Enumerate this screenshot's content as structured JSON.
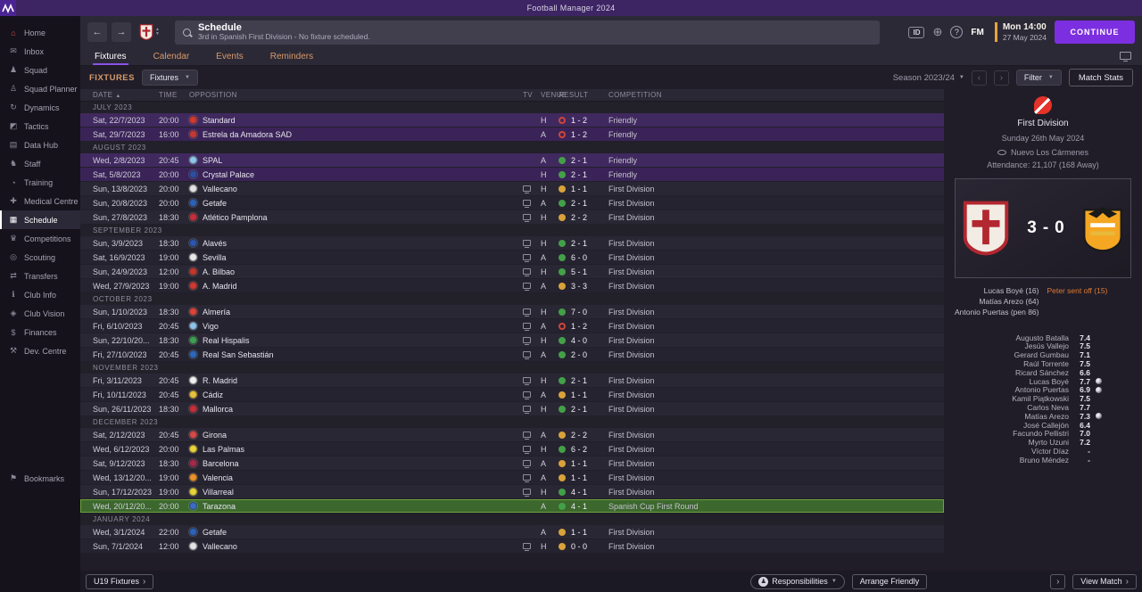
{
  "titlebar": {
    "title": "Football Manager 2024"
  },
  "sidebar": {
    "items": [
      {
        "label": "Home",
        "icon": "home-icon",
        "accent": true
      },
      {
        "label": "Inbox",
        "icon": "inbox-icon"
      },
      {
        "label": "Squad",
        "icon": "squad-icon"
      },
      {
        "label": "Squad Planner",
        "icon": "squad-planner-icon"
      },
      {
        "label": "Dynamics",
        "icon": "dynamics-icon"
      },
      {
        "label": "Tactics",
        "icon": "tactics-icon"
      },
      {
        "label": "Data Hub",
        "icon": "data-hub-icon"
      },
      {
        "label": "Staff",
        "icon": "staff-icon"
      },
      {
        "label": "Training",
        "icon": "training-icon"
      },
      {
        "label": "Medical Centre",
        "icon": "medical-icon"
      },
      {
        "label": "Schedule",
        "icon": "schedule-icon",
        "selected": true
      },
      {
        "label": "Competitions",
        "icon": "competitions-icon"
      },
      {
        "label": "Scouting",
        "icon": "scouting-icon"
      },
      {
        "label": "Transfers",
        "icon": "transfers-icon"
      },
      {
        "label": "Club Info",
        "icon": "club-info-icon"
      },
      {
        "label": "Club Vision",
        "icon": "club-vision-icon"
      },
      {
        "label": "Finances",
        "icon": "finances-icon"
      },
      {
        "label": "Dev. Centre",
        "icon": "dev-centre-icon"
      }
    ],
    "bookmarks_label": "Bookmarks"
  },
  "header": {
    "title": "Schedule",
    "subtitle": "3rd in Spanish First Division - No fixture scheduled.",
    "id_label": "ID",
    "help_label": "?",
    "fm_label": "FM",
    "clock_time": "Mon 14:00",
    "clock_date": "27 May 2024",
    "continue_label": "CONTINUE"
  },
  "tabs": [
    {
      "label": "Fixtures",
      "active": true
    },
    {
      "label": "Calendar",
      "active": false
    },
    {
      "label": "Events",
      "active": false
    },
    {
      "label": "Reminders",
      "active": false
    }
  ],
  "toolbar": {
    "section_label": "FIXTURES",
    "view_label": "Fixtures",
    "season_label": "Season 2023/24",
    "filter_label": "Filter",
    "match_stats_label": "Match Stats"
  },
  "fixtures": {
    "columns": {
      "date": "DATE",
      "time": "TIME",
      "opposition": "OPPOSITION",
      "tv": "TV",
      "venue": "VENUE",
      "result": "RESULT",
      "competition": "COMPETITION"
    },
    "groups": [
      {
        "month": "JULY 2023",
        "rows": [
          {
            "date": "Sat, 22/7/2023",
            "time": "20:00",
            "team": "Standard",
            "badge": "#cf3b31",
            "tv": false,
            "venue": "H",
            "outcome": "loss",
            "result": "1 - 2",
            "comp": "Friendly",
            "hl": "friendly"
          },
          {
            "date": "Sat, 29/7/2023",
            "time": "16:00",
            "team": "Estrela da Amadora SAD",
            "badge": "#c13a3a",
            "tv": false,
            "venue": "A",
            "outcome": "loss",
            "result": "1 - 2",
            "comp": "Friendly",
            "hl": "friendly"
          }
        ]
      },
      {
        "month": "AUGUST 2023",
        "rows": [
          {
            "date": "Wed, 2/8/2023",
            "time": "20:45",
            "team": "SPAL",
            "badge": "#8fc6e8",
            "tv": false,
            "venue": "A",
            "outcome": "win",
            "result": "2 - 1",
            "comp": "Friendly",
            "hl": "friendly"
          },
          {
            "date": "Sat, 5/8/2023",
            "time": "20:00",
            "team": "Crystal Palace",
            "badge": "#2f4ea0",
            "tv": false,
            "venue": "H",
            "outcome": "win",
            "result": "2 - 1",
            "comp": "Friendly",
            "hl": "friendly"
          },
          {
            "date": "Sun, 13/8/2023",
            "time": "20:00",
            "team": "Vallecano",
            "badge": "#e3e3e3",
            "tv": true,
            "venue": "H",
            "outcome": "draw",
            "result": "1 - 1",
            "comp": "First Division"
          },
          {
            "date": "Sun, 20/8/2023",
            "time": "20:00",
            "team": "Getafe",
            "badge": "#2d62b5",
            "tv": true,
            "venue": "A",
            "outcome": "win",
            "result": "2 - 1",
            "comp": "First Division"
          },
          {
            "date": "Sun, 27/8/2023",
            "time": "18:30",
            "team": "Atlético Pamplona",
            "badge": "#c2303d",
            "tv": true,
            "venue": "H",
            "outcome": "draw",
            "result": "2 - 2",
            "comp": "First Division"
          }
        ]
      },
      {
        "month": "SEPTEMBER 2023",
        "rows": [
          {
            "date": "Sun, 3/9/2023",
            "time": "18:30",
            "team": "Alavés",
            "badge": "#2d55ab",
            "tv": true,
            "venue": "H",
            "outcome": "win",
            "result": "2 - 1",
            "comp": "First Division"
          },
          {
            "date": "Sat, 16/9/2023",
            "time": "19:00",
            "team": "Sevilla",
            "badge": "#e8e8e8",
            "tv": true,
            "venue": "A",
            "outcome": "win",
            "result": "6 - 0",
            "comp": "First Division"
          },
          {
            "date": "Sun, 24/9/2023",
            "time": "12:00",
            "team": "A. Bilbao",
            "badge": "#c0392e",
            "tv": true,
            "venue": "H",
            "outcome": "win",
            "result": "5 - 1",
            "comp": "First Division"
          },
          {
            "date": "Wed, 27/9/2023",
            "time": "19:00",
            "team": "A. Madrid",
            "badge": "#cb3a33",
            "tv": true,
            "venue": "A",
            "outcome": "draw",
            "result": "3 - 3",
            "comp": "First Division"
          }
        ]
      },
      {
        "month": "OCTOBER 2023",
        "rows": [
          {
            "date": "Sun, 1/10/2023",
            "time": "18:30",
            "team": "Almería",
            "badge": "#d8453c",
            "tv": true,
            "venue": "H",
            "outcome": "win",
            "result": "7 - 0",
            "comp": "First Division"
          },
          {
            "date": "Fri, 6/10/2023",
            "time": "20:45",
            "team": "Vigo",
            "badge": "#8fc0e8",
            "tv": true,
            "venue": "A",
            "outcome": "loss",
            "result": "1 - 2",
            "comp": "First Division"
          },
          {
            "date": "Sun, 22/10/20...",
            "time": "18:30",
            "team": "Real Hispalis",
            "badge": "#3f9e53",
            "tv": true,
            "venue": "H",
            "outcome": "win",
            "result": "4 - 0",
            "comp": "First Division"
          },
          {
            "date": "Fri, 27/10/2023",
            "time": "20:45",
            "team": "Real San Sebastián",
            "badge": "#2d68b8",
            "tv": true,
            "venue": "A",
            "outcome": "win",
            "result": "2 - 0",
            "comp": "First Division"
          }
        ]
      },
      {
        "month": "NOVEMBER 2023",
        "rows": [
          {
            "date": "Fri, 3/11/2023",
            "time": "20:45",
            "team": "R. Madrid",
            "badge": "#efefef",
            "tv": true,
            "venue": "H",
            "outcome": "win",
            "result": "2 - 1",
            "comp": "First Division"
          },
          {
            "date": "Fri, 10/11/2023",
            "time": "20:45",
            "team": "Cádiz",
            "badge": "#e6c23c",
            "tv": true,
            "venue": "A",
            "outcome": "draw",
            "result": "1 - 1",
            "comp": "First Division"
          },
          {
            "date": "Sun, 26/11/2023",
            "time": "18:30",
            "team": "Mallorca",
            "badge": "#c33038",
            "tv": true,
            "venue": "H",
            "outcome": "win",
            "result": "2 - 1",
            "comp": "First Division"
          }
        ]
      },
      {
        "month": "DECEMBER 2023",
        "rows": [
          {
            "date": "Sat, 2/12/2023",
            "time": "20:45",
            "team": "Girona",
            "badge": "#d24a4a",
            "tv": true,
            "venue": "A",
            "outcome": "draw",
            "result": "2 - 2",
            "comp": "First Division"
          },
          {
            "date": "Wed, 6/12/2023",
            "time": "20:00",
            "team": "Las Palmas",
            "badge": "#e8d23c",
            "tv": true,
            "venue": "H",
            "outcome": "win",
            "result": "6 - 2",
            "comp": "First Division"
          },
          {
            "date": "Sat, 9/12/2023",
            "time": "18:30",
            "team": "Barcelona",
            "badge": "#a32a4c",
            "tv": true,
            "venue": "A",
            "outcome": "draw",
            "result": "1 - 1",
            "comp": "First Division"
          },
          {
            "date": "Wed, 13/12/20...",
            "time": "19:00",
            "team": "Valencia",
            "badge": "#e8912d",
            "tv": true,
            "venue": "A",
            "outcome": "draw",
            "result": "1 - 1",
            "comp": "First Division"
          },
          {
            "date": "Sun, 17/12/2023",
            "time": "19:00",
            "team": "Villarreal",
            "badge": "#e8d23c",
            "tv": true,
            "venue": "H",
            "outcome": "win",
            "result": "4 - 1",
            "comp": "First Division"
          },
          {
            "date": "Wed, 20/12/20...",
            "time": "20:00",
            "team": "Tarazona",
            "badge": "#3a6cc0",
            "tv": false,
            "venue": "A",
            "outcome": "win",
            "result": "4 - 1",
            "comp": "Spanish Cup First Round",
            "hl": "cup"
          }
        ]
      },
      {
        "month": "JANUARY 2024",
        "rows": [
          {
            "date": "Wed, 3/1/2024",
            "time": "22:00",
            "team": "Getafe",
            "badge": "#2d62b5",
            "tv": false,
            "venue": "A",
            "outcome": "draw",
            "result": "1 - 1",
            "comp": "First Division"
          },
          {
            "date": "Sun, 7/1/2024",
            "time": "12:00",
            "team": "Vallecano",
            "badge": "#e3e3e3",
            "tv": true,
            "venue": "H",
            "outcome": "draw",
            "result": "0 - 0",
            "comp": "First Division"
          }
        ]
      }
    ]
  },
  "match_panel": {
    "competition": "First Division",
    "date": "Sunday 26th May 2024",
    "venue": "Nuevo Los Cármenes",
    "attendance": "Attendance: 21,107 (168 Away)",
    "home_score": "3",
    "score_separator": "-",
    "away_score": "0",
    "home_scorers": [
      "Lucas Boyé (16)",
      "Matías Arezo (64)",
      "Antonio Puertas (pen 86)"
    ],
    "away_events": [
      "Peter sent off (15)"
    ],
    "ratings": [
      {
        "name": "Augusto Batalla",
        "rating": "7.4"
      },
      {
        "name": "Jesús Vallejo",
        "rating": "7.5"
      },
      {
        "name": "Gerard Gumbau",
        "rating": "7.1"
      },
      {
        "name": "Raúl Torrente",
        "rating": "7.5"
      },
      {
        "name": "Ricard Sánchez",
        "rating": "6.6"
      },
      {
        "name": "Lucas Boyé",
        "rating": "7.7",
        "goal": true
      },
      {
        "name": "Antonio Puertas",
        "rating": "6.9",
        "goal": true
      },
      {
        "name": "Kamil Piątkowski",
        "rating": "7.5"
      },
      {
        "name": "Carlos Neva",
        "rating": "7.7"
      },
      {
        "name": "Matías Arezo",
        "rating": "7.3",
        "goal": true
      },
      {
        "name": "José Callejón",
        "rating": "6.4"
      },
      {
        "name": "Facundo Pellistri",
        "rating": "7.0"
      },
      {
        "name": "Myrto Uzuni",
        "rating": "7.2"
      },
      {
        "name": "Víctor Díaz",
        "rating": "-"
      },
      {
        "name": "Bruno Méndez",
        "rating": "-"
      }
    ]
  },
  "footer": {
    "u19_label": "U19 Fixtures",
    "responsibilities_label": "Responsibilities",
    "arrange_friendly_label": "Arrange Friendly",
    "view_match_label": "View Match"
  },
  "colors": {
    "accent_purple": "#7c2fe0",
    "win": "#43a047",
    "draw": "#d9a23a",
    "loss": "#d04538",
    "friendly_row": "#40295f",
    "cup_row": "#3c682e",
    "tab_inactive": "#d69a6b",
    "clock_accent": "#e8a33d"
  }
}
